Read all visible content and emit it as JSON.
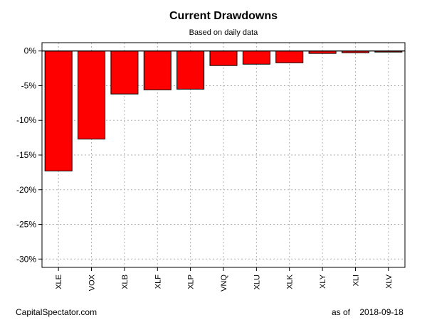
{
  "chart_data": {
    "type": "bar",
    "title": "Current Drawdowns",
    "subtitle": "Based on daily data",
    "categories": [
      "XLE",
      "VOX",
      "XLB",
      "XLF",
      "XLP",
      "VNQ",
      "XLU",
      "XLK",
      "XLY",
      "XLI",
      "XLV"
    ],
    "values": [
      -17.3,
      -12.7,
      -6.2,
      -5.6,
      -5.5,
      -2.1,
      -1.9,
      -1.7,
      -0.35,
      -0.25,
      -0.15
    ],
    "ylim": [
      -31.2,
      1.2
    ],
    "yticks": [
      0,
      -5,
      -10,
      -15,
      -20,
      -25,
      -30
    ],
    "ytick_labels": [
      "0%",
      "-5%",
      "-10%",
      "-15%",
      "-20%",
      "-25%",
      "-30%"
    ],
    "xlabel": "",
    "ylabel": "",
    "grid": true,
    "bar_color": "#ff0000",
    "bar_outline": "#000000",
    "grid_color": "#b0b0b0"
  },
  "footer": {
    "source": "CapitalSpectator.com",
    "as_of_label": "as of",
    "date": "2018-09-18"
  }
}
